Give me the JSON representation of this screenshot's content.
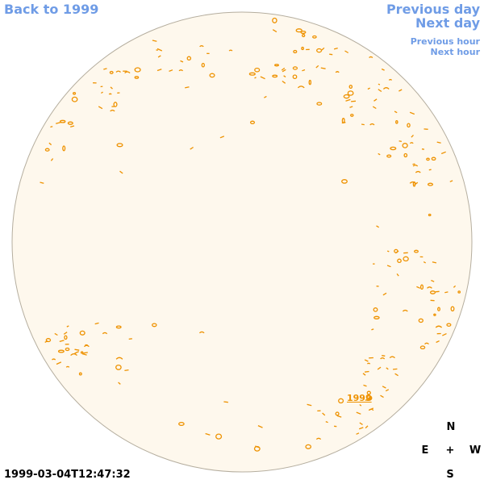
{
  "navigation": {
    "back_label": "Back to 1999",
    "previous_day_label": "Previous day",
    "next_day_label": "Next day",
    "previous_hour_label": "Previous hour",
    "next_hour_label": "Next hour"
  },
  "map": {
    "marker_label": "1999",
    "timestamp": "1999-03-04T12:47:32"
  },
  "compass": {
    "north": "N",
    "east": "E",
    "center": "+",
    "west": "W",
    "south": "S"
  },
  "colors": {
    "link": "#6f9ce6",
    "disk_fill": "#fef8ed",
    "disk_outline": "#b5ae9f",
    "contour": "#ee9200",
    "text": "#000000"
  }
}
